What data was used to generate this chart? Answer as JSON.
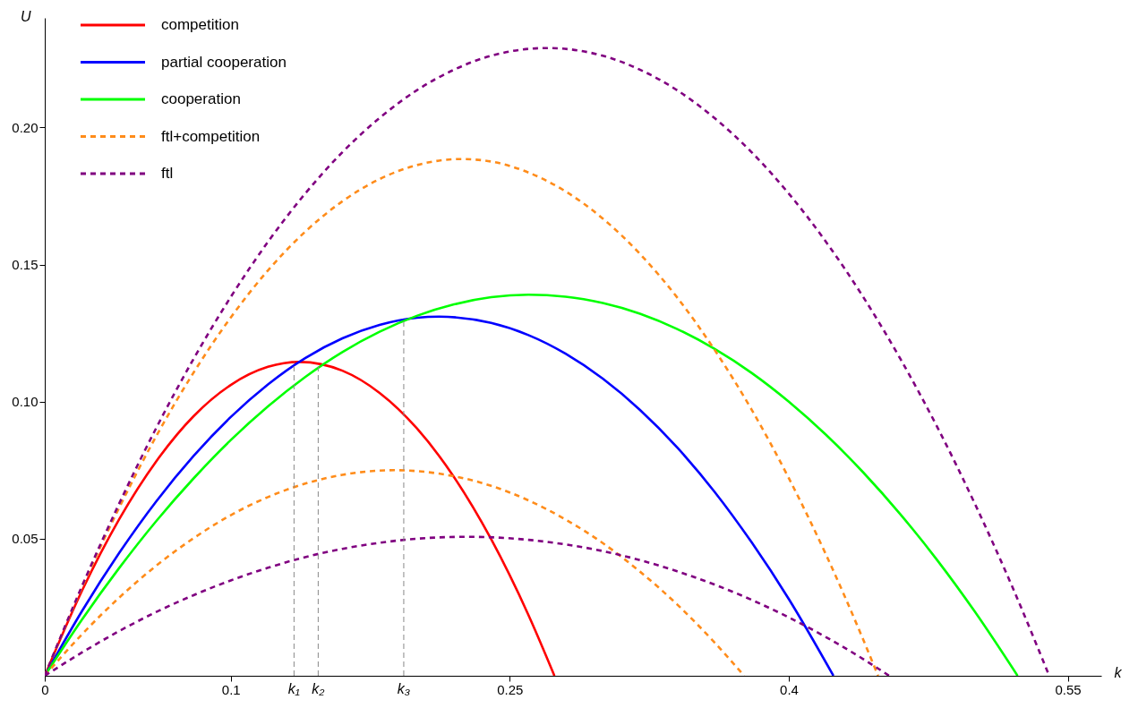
{
  "chart_data": {
    "type": "line",
    "xlabel": "k",
    "ylabel": "U",
    "xlim": [
      0,
      0.568
    ],
    "ylim": [
      0,
      0.24
    ],
    "xticks": [
      0,
      0.1,
      0.25,
      0.4,
      0.55
    ],
    "yticks": [
      0.05,
      {
        "value": 0.1,
        "label": "0.10"
      },
      0.15,
      {
        "value": 0.2,
        "label": "0.20"
      }
    ],
    "grid": false,
    "legend": "top left",
    "marker": "none",
    "series": [
      {
        "name": "competition",
        "color": "#ff0000",
        "line_style": "solid",
        "x": [
          0,
          0.02,
          0.04,
          0.06,
          0.08,
          0.1,
          0.12,
          0.137,
          0.16,
          0.18,
          0.2,
          0.22,
          0.24,
          0.26,
          0.274
        ],
        "values": [
          0,
          0.031,
          0.0571,
          0.0783,
          0.0947,
          0.1061,
          0.1127,
          0.1145,
          0.1113,
          0.1032,
          0.0903,
          0.0725,
          0.0498,
          0.0222,
          0
        ]
      },
      {
        "name": "partial cooperation",
        "color": "#0000ff",
        "line_style": "solid",
        "x": [
          0,
          0.02,
          0.04,
          0.06,
          0.08,
          0.1,
          0.12,
          0.14,
          0.16,
          0.18,
          0.2,
          0.212,
          0.24,
          0.26,
          0.28,
          0.3,
          0.32,
          0.34,
          0.36,
          0.38,
          0.4,
          0.424
        ],
        "values": [
          0,
          0.0236,
          0.0448,
          0.0637,
          0.0802,
          0.0944,
          0.1063,
          0.1159,
          0.1231,
          0.128,
          0.1306,
          0.131,
          0.1287,
          0.1243,
          0.1175,
          0.1084,
          0.097,
          0.0833,
          0.0672,
          0.0487,
          0.028,
          0
        ]
      },
      {
        "name": "cooperation",
        "color": "#00ff00",
        "line_style": "solid",
        "x": [
          0,
          0.02,
          0.04,
          0.06,
          0.08,
          0.1,
          0.12,
          0.14,
          0.16,
          0.18,
          0.2,
          0.22,
          0.24,
          0.26,
          0.28,
          0.3,
          0.32,
          0.34,
          0.36,
          0.38,
          0.4,
          0.42,
          0.44,
          0.46,
          0.48,
          0.5,
          0.523
        ],
        "values": [
          0,
          0.0205,
          0.0393,
          0.0565,
          0.072,
          0.086,
          0.0983,
          0.109,
          0.1181,
          0.1255,
          0.1313,
          0.1355,
          0.1381,
          0.139,
          0.1383,
          0.136,
          0.1321,
          0.1265,
          0.1193,
          0.1105,
          0.1,
          0.0879,
          0.0742,
          0.0589,
          0.042,
          0.0234,
          0
        ]
      },
      {
        "name": "ftl+competition",
        "color": "#ff8c1a",
        "line_style": "dashed",
        "x": [
          0,
          0.02,
          0.04,
          0.06,
          0.08,
          0.1,
          0.12,
          0.14,
          0.16,
          0.18,
          0.2,
          0.224,
          0.24,
          0.26,
          0.28,
          0.3,
          0.32,
          0.34,
          0.36,
          0.38,
          0.4,
          0.42,
          0.44,
          0.448
        ],
        "values": [
          0,
          0.0322,
          0.0613,
          0.0875,
          0.1106,
          0.1307,
          0.1479,
          0.162,
          0.1731,
          0.1812,
          0.1863,
          0.1885,
          0.1876,
          0.1836,
          0.1767,
          0.1668,
          0.1539,
          0.138,
          0.119,
          0.0971,
          0.0721,
          0.0442,
          0.0132,
          0
        ]
      },
      {
        "color": "#ff8c1a",
        "line_style": "dashed",
        "x": [
          0,
          0.02,
          0.04,
          0.06,
          0.08,
          0.1,
          0.12,
          0.14,
          0.16,
          0.188,
          0.22,
          0.24,
          0.26,
          0.28,
          0.3,
          0.32,
          0.34,
          0.36,
          0.376
        ],
        "values": [
          0,
          0.0151,
          0.0285,
          0.0402,
          0.0502,
          0.0586,
          0.0652,
          0.0701,
          0.0733,
          0.075,
          0.0728,
          0.0693,
          0.064,
          0.057,
          0.0484,
          0.038,
          0.026,
          0.0122,
          0
        ]
      },
      {
        "name": "ftl",
        "color": "#800080",
        "line_style": "dashed",
        "x": [
          0,
          0.02,
          0.04,
          0.06,
          0.08,
          0.1,
          0.12,
          0.14,
          0.16,
          0.18,
          0.2,
          0.22,
          0.24,
          0.27,
          0.3,
          0.32,
          0.34,
          0.36,
          0.38,
          0.4,
          0.42,
          0.44,
          0.46,
          0.48,
          0.5,
          0.52,
          0.54
        ],
        "values": [
          0,
          0.0327,
          0.0628,
          0.0905,
          0.1156,
          0.1382,
          0.1583,
          0.1759,
          0.191,
          0.2035,
          0.2136,
          0.2211,
          0.2262,
          0.229,
          0.2262,
          0.2211,
          0.2136,
          0.2035,
          0.191,
          0.1759,
          0.1583,
          0.1382,
          0.1156,
          0.0905,
          0.0628,
          0.0327,
          0
        ]
      },
      {
        "color": "#800080",
        "line_style": "dashed",
        "x": [
          0,
          0.02,
          0.04,
          0.06,
          0.08,
          0.1,
          0.12,
          0.14,
          0.16,
          0.18,
          0.2,
          0.227,
          0.26,
          0.28,
          0.3,
          0.32,
          0.34,
          0.36,
          0.38,
          0.4,
          0.42,
          0.44,
          0.454
        ],
        "values": [
          0,
          0.0085,
          0.0163,
          0.0233,
          0.0294,
          0.0348,
          0.0394,
          0.0433,
          0.0463,
          0.0485,
          0.05,
          0.0507,
          0.0496,
          0.0479,
          0.0455,
          0.0422,
          0.0381,
          0.0333,
          0.0277,
          0.0213,
          0.0141,
          0.0061,
          0
        ]
      }
    ],
    "annotations": [
      {
        "text": "k₁",
        "x": 0.134,
        "y": 0.1145
      },
      {
        "text": "k₂",
        "x": 0.147,
        "y": 0.114
      },
      {
        "text": "k₃",
        "x": 0.193,
        "y": 0.1305
      }
    ]
  }
}
